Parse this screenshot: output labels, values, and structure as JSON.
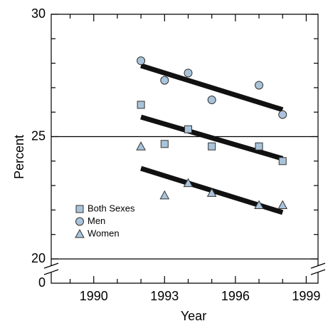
{
  "chart_data": {
    "type": "scatter",
    "x_label": "Year",
    "y_label": "Percent",
    "xlim": [
      1988.2,
      1999.5
    ],
    "xticks": [
      1990,
      1993,
      1996,
      1999
    ],
    "xminorticks": [
      1989,
      1991,
      1992,
      1994,
      1995,
      1997,
      1998
    ],
    "ylim": [
      20,
      30
    ],
    "yticks": [
      20,
      25,
      30
    ],
    "yminorticks": [
      21,
      22,
      23,
      24,
      26,
      27,
      28,
      29
    ],
    "y_break_tick": 0,
    "hlines": [
      20,
      25
    ],
    "legend": "lower-left",
    "series": [
      {
        "name": "Both Sexes",
        "marker": "square",
        "color": "#a9c3da",
        "x": [
          1992,
          1993,
          1994,
          1995,
          1997,
          1998
        ],
        "values": [
          26.3,
          24.7,
          25.3,
          24.6,
          24.6,
          24.0
        ],
        "trend_x": [
          1992,
          1998
        ],
        "trend": [
          25.8,
          24.1
        ]
      },
      {
        "name": "Men",
        "marker": "circle",
        "color": "#a9c3da",
        "x": [
          1992,
          1993,
          1994,
          1995,
          1997,
          1998
        ],
        "values": [
          28.1,
          27.3,
          27.6,
          26.5,
          27.1,
          25.9
        ],
        "trend_x": [
          1992,
          1998
        ],
        "trend": [
          27.9,
          26.1
        ]
      },
      {
        "name": "Women",
        "marker": "triangle",
        "color": "#a9c3da",
        "x": [
          1992,
          1993,
          1994,
          1995,
          1997,
          1998
        ],
        "values": [
          24.6,
          22.6,
          23.1,
          22.7,
          22.2,
          22.2
        ],
        "trend_x": [
          1992,
          1998
        ],
        "trend": [
          23.7,
          21.9
        ]
      }
    ]
  }
}
